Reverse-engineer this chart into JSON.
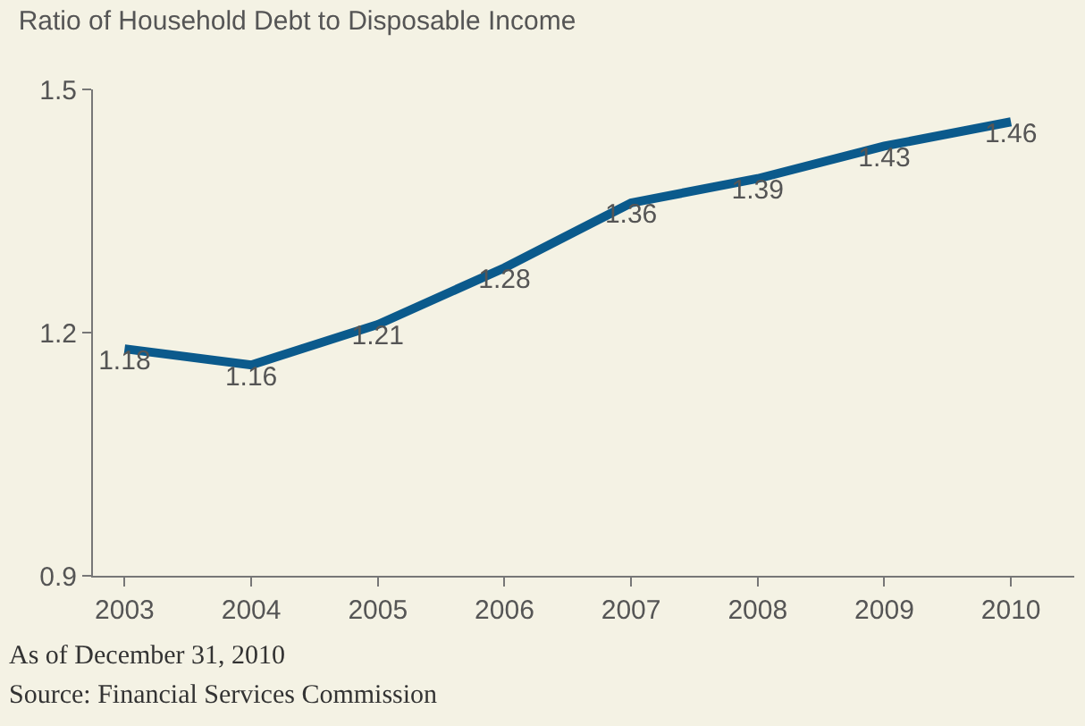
{
  "chart_data": {
    "type": "line",
    "title": "Ratio of Household Debt to Disposable Income",
    "categories": [
      "2003",
      "2004",
      "2005",
      "2006",
      "2007",
      "2008",
      "2009",
      "2010"
    ],
    "series": [
      {
        "color": "#0b5a8c",
        "values": [
          1.18,
          1.16,
          1.21,
          1.28,
          1.36,
          1.39,
          1.43,
          1.46
        ]
      }
    ],
    "ylim": [
      0.9,
      1.5
    ],
    "yticks": [
      0.9,
      1.2,
      1.5
    ],
    "data_labels": true,
    "grid": false,
    "marker": "none",
    "line_style": "solid",
    "annotations": [
      "As of December 31, 2010",
      "Source: Financial Services Commission"
    ]
  }
}
